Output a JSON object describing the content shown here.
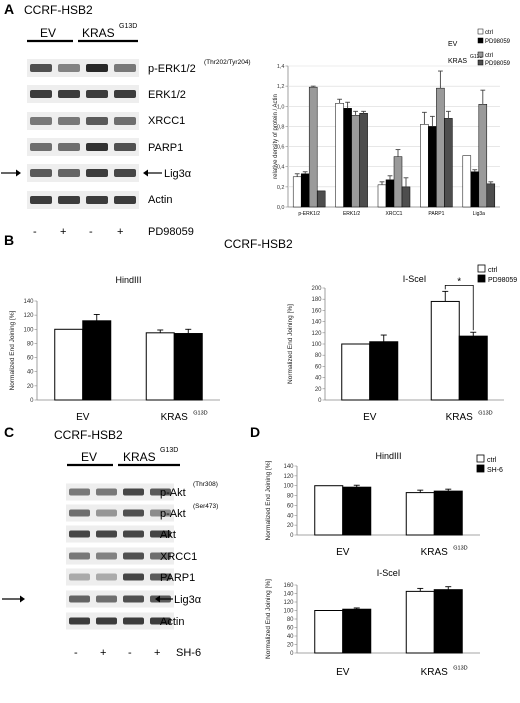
{
  "panels": {
    "A": {
      "letter": "A",
      "cell_line": "CCRF-HSB2",
      "groups": [
        "EV",
        "KRAS",
        "G13D"
      ],
      "blot_rows": [
        "p-ERK1/2",
        "ERK1/2",
        "XRCC1",
        "PARP1",
        "Lig3α",
        "Actin"
      ],
      "perk_sup": "(Thr202/Tyr204)",
      "treatment_signs": [
        "-",
        "+",
        "-",
        "+"
      ],
      "treatment": "PD98059"
    },
    "B": {
      "letter": "B",
      "cell_line": "CCRF-HSB2"
    },
    "C": {
      "letter": "C",
      "cell_line": "CCRF-HSB2",
      "groups": [
        "EV",
        "KRAS",
        "G13D"
      ],
      "blot_rows": [
        "p-Akt",
        "p-Akt",
        "Akt",
        "XRCC1",
        "PARP1",
        "Lig3α",
        "Actin"
      ],
      "sups": [
        "(Thr308)",
        "(Ser473)"
      ],
      "treatment_signs": [
        "-",
        "+",
        "-",
        "+"
      ],
      "treatment": "SH-6"
    },
    "D": {
      "letter": "D"
    }
  },
  "chart_data": [
    {
      "id": "A-density",
      "type": "bar",
      "ylabel": "relative density of protein / Actin",
      "ylim": [
        0,
        1.4
      ],
      "yticks": [
        "0,0",
        "0,2",
        "0,4",
        "0,6",
        "0,8",
        "1,0",
        "1,2",
        "1,4"
      ],
      "categories": [
        "p-ERK1/2",
        "ERK1/2",
        "XRCC1",
        "PARP1",
        "Lig3a"
      ],
      "legend_groups": [
        {
          "title": "EV",
          "entries": [
            "ctrl",
            "PD98059"
          ]
        },
        {
          "title": "KRAS",
          "title_sup": "G13D",
          "entries": [
            "ctrl",
            "PD98059"
          ]
        }
      ],
      "series": [
        {
          "name": "EV ctrl",
          "values": [
            0.3,
            1.03,
            0.22,
            0.82,
            0.51
          ],
          "errors": [
            0.03,
            0.04,
            0.03,
            0.12,
            0.0
          ],
          "color": "#ffffff"
        },
        {
          "name": "EV PD98059",
          "values": [
            0.33,
            0.98,
            0.27,
            0.8,
            0.35
          ],
          "errors": [
            0.02,
            0.06,
            0.04,
            0.1,
            0.02
          ],
          "color": "#000000"
        },
        {
          "name": "KRAS G13D ctrl",
          "values": [
            1.19,
            0.91,
            0.5,
            1.18,
            1.02
          ],
          "errors": [
            0.01,
            0.04,
            0.07,
            0.17,
            0.14
          ],
          "color": "#9a9a9a"
        },
        {
          "name": "KRAS G13D PD98059",
          "values": [
            0.16,
            0.93,
            0.2,
            0.88,
            0.23
          ],
          "errors": [
            0.0,
            0.02,
            0.09,
            0.07,
            0.02
          ],
          "color": "#4d4d4d"
        }
      ]
    },
    {
      "id": "B-HindIII",
      "type": "bar",
      "title": "HindIII",
      "ylabel": "Normalized End Joining [%]",
      "ylim": [
        0,
        140
      ],
      "yticks": [
        "0",
        "20",
        "40",
        "60",
        "80",
        "100",
        "120",
        "140"
      ],
      "categories": [
        "EV",
        "KRAS"
      ],
      "category_sups": [
        "",
        "G13D"
      ],
      "series": [
        {
          "name": "ctrl",
          "values": [
            100,
            95
          ],
          "errors": [
            0,
            4
          ],
          "color": "#ffffff"
        },
        {
          "name": "PD98059",
          "values": [
            112,
            94
          ],
          "errors": [
            9,
            6
          ],
          "color": "#000000"
        }
      ]
    },
    {
      "id": "B-I-SceI",
      "type": "bar",
      "title": "I-SceI",
      "ylabel": "Normalized End Joining [%]",
      "ylim": [
        0,
        200
      ],
      "yticks": [
        "0",
        "20",
        "40",
        "60",
        "80",
        "100",
        "120",
        "140",
        "160",
        "180",
        "200"
      ],
      "categories": [
        "EV",
        "KRAS"
      ],
      "category_sups": [
        "",
        "G13D"
      ],
      "legend": [
        "ctrl",
        "PD98059"
      ],
      "annotation": "*",
      "series": [
        {
          "name": "ctrl",
          "values": [
            100,
            176
          ],
          "errors": [
            0,
            18
          ],
          "color": "#ffffff"
        },
        {
          "name": "PD98059",
          "values": [
            104,
            114
          ],
          "errors": [
            12,
            7
          ],
          "color": "#000000"
        }
      ]
    },
    {
      "id": "D-HindIII",
      "type": "bar",
      "title": "HindIII",
      "ylabel": "Normalized End Joining [%]",
      "ylim": [
        0,
        140
      ],
      "yticks": [
        "0",
        "20",
        "40",
        "60",
        "80",
        "100",
        "120",
        "140"
      ],
      "categories": [
        "EV",
        "KRAS"
      ],
      "category_sups": [
        "",
        "G13D"
      ],
      "legend": [
        "ctrl",
        "SH-6"
      ],
      "series": [
        {
          "name": "ctrl",
          "values": [
            100,
            86
          ],
          "errors": [
            0,
            5
          ],
          "color": "#ffffff"
        },
        {
          "name": "SH-6",
          "values": [
            97,
            89
          ],
          "errors": [
            4,
            4
          ],
          "color": "#000000"
        }
      ]
    },
    {
      "id": "D-I-SceI",
      "type": "bar",
      "title": "I-SceI",
      "ylabel": "Normalized End Joining [%]",
      "ylim": [
        0,
        160
      ],
      "yticks": [
        "0",
        "20",
        "40",
        "60",
        "80",
        "100",
        "120",
        "140",
        "160"
      ],
      "categories": [
        "EV",
        "KRAS"
      ],
      "category_sups": [
        "",
        "G13D"
      ],
      "series": [
        {
          "name": "ctrl",
          "values": [
            100,
            145
          ],
          "errors": [
            0,
            7
          ],
          "color": "#ffffff"
        },
        {
          "name": "SH-6",
          "values": [
            103,
            149
          ],
          "errors": [
            3,
            7
          ],
          "color": "#000000"
        }
      ]
    }
  ]
}
